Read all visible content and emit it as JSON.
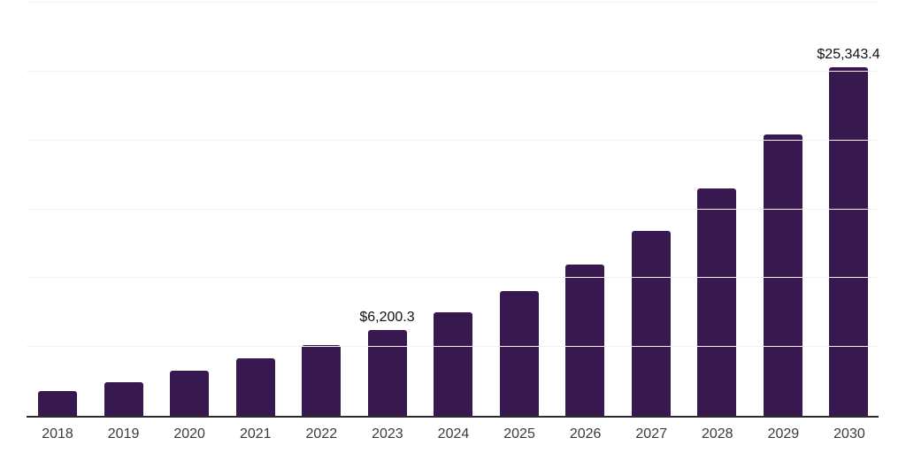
{
  "chart_data": {
    "type": "bar",
    "title": "",
    "xlabel": "",
    "ylabel": "",
    "categories": [
      "2018",
      "2019",
      "2020",
      "2021",
      "2022",
      "2023",
      "2024",
      "2025",
      "2026",
      "2027",
      "2028",
      "2029",
      "2030"
    ],
    "values": [
      1800,
      2450,
      3300,
      4150,
      5150,
      6200.3,
      7500,
      9050,
      11000,
      13450,
      16500,
      20400,
      25343.4
    ],
    "annotations": [
      {
        "category": "2023",
        "label": "$6,200.3"
      },
      {
        "category": "2030",
        "label": "$25,343.4"
      }
    ],
    "ylim": [
      0,
      30000
    ],
    "gridline_step": 5000,
    "grid": true,
    "legend": "none",
    "currency_prefix": "$",
    "colors": {
      "bar": "#38194f",
      "axis_line": "#2b2b2b",
      "grid_line": "#f2f2f2",
      "value_label_text": "#111111",
      "tick_label_text": "#3a3a3a",
      "background": "#ffffff"
    }
  }
}
